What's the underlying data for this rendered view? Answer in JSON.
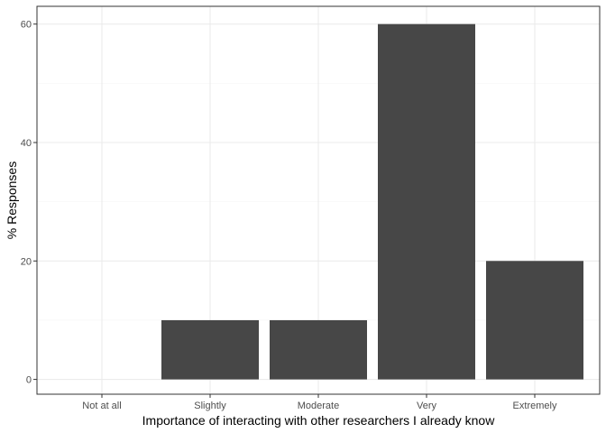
{
  "chart_data": {
    "type": "bar",
    "title": "",
    "xlabel": "Importance of interacting with other researchers I already know",
    "ylabel": "% Responses",
    "categories": [
      "Not at all",
      "Slightly",
      "Moderate",
      "Very",
      "Extremely"
    ],
    "values": [
      0,
      10,
      10,
      60,
      20
    ],
    "ylim": [
      -2.5,
      63
    ],
    "yticks": [
      0,
      20,
      40,
      60
    ],
    "grid": true,
    "legend": "none",
    "colors": {
      "bar": "#474747",
      "grid_major": "#ebebeb",
      "grid_minor": "#f5f5f5",
      "panel_border": "#333333",
      "tick_text": "#4d4d4d"
    }
  }
}
